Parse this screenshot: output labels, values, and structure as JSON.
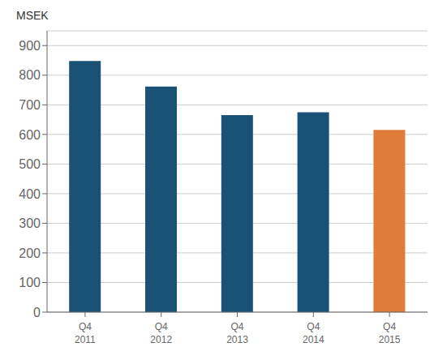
{
  "chart_data": {
    "type": "bar",
    "ylabel": "MSEK",
    "categories": [
      "Q4\n2011",
      "Q4\n2012",
      "Q4\n2013",
      "Q4\n2014",
      "Q4\n2015"
    ],
    "values": [
      848,
      762,
      665,
      675,
      615
    ],
    "colors": [
      "#1a5276",
      "#1a5276",
      "#1a5276",
      "#1a5276",
      "#e07b39"
    ],
    "ylim": [
      0,
      950
    ],
    "yticks": [
      0,
      100,
      200,
      300,
      400,
      500,
      600,
      700,
      800,
      900
    ],
    "grid": true
  }
}
